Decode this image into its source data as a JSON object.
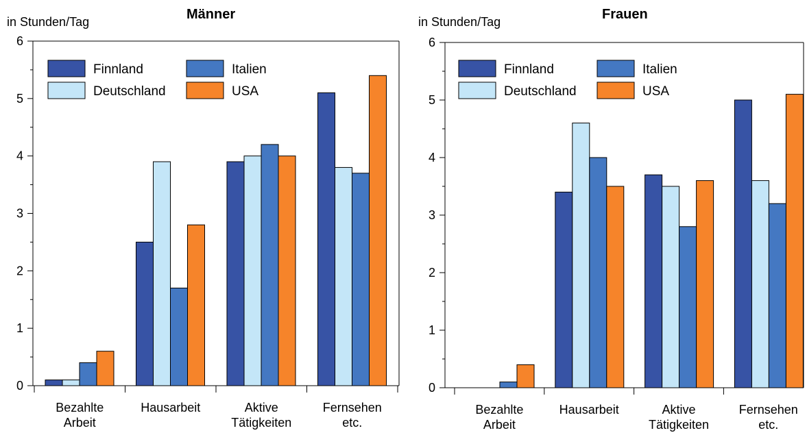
{
  "chart_data": [
    {
      "type": "bar",
      "title": "Männer",
      "ylabel": "in Stunden/Tag",
      "ylim": [
        0,
        6
      ],
      "yticks": [
        "0",
        "1",
        "2",
        "3",
        "4",
        "5",
        "6"
      ],
      "categories": [
        [
          "Bezahlte",
          "Arbeit"
        ],
        [
          "Hausarbeit"
        ],
        [
          "Aktive",
          "Tätigkeiten"
        ],
        [
          "Fernsehen",
          "etc."
        ]
      ],
      "series": [
        {
          "name": "Finnland",
          "color": "#3753a5",
          "values": [
            0.1,
            2.5,
            3.9,
            5.1
          ]
        },
        {
          "name": "Deutschland",
          "color": "#c4e6f8",
          "values": [
            0.1,
            3.9,
            4.0,
            3.8
          ]
        },
        {
          "name": "Italien",
          "color": "#4478c2",
          "values": [
            0.4,
            1.7,
            4.2,
            3.7
          ]
        },
        {
          "name": "USA",
          "color": "#f6842a",
          "values": [
            0.6,
            2.8,
            4.0,
            5.4
          ]
        }
      ],
      "legend_position": "top-left",
      "grid": false
    },
    {
      "type": "bar",
      "title": "Frauen",
      "ylabel": "in Stunden/Tag",
      "ylim": [
        0,
        6
      ],
      "yticks": [
        "0",
        "1",
        "2",
        "3",
        "4",
        "5",
        "6"
      ],
      "categories": [
        [
          "Bezahlte",
          "Arbeit"
        ],
        [
          "Hausarbeit"
        ],
        [
          "Aktive",
          "Tätigkeiten"
        ],
        [
          "Fernsehen",
          "etc."
        ]
      ],
      "series": [
        {
          "name": "Finnland",
          "color": "#3753a5",
          "values": [
            0.0,
            3.4,
            3.7,
            5.0
          ]
        },
        {
          "name": "Deutschland",
          "color": "#c4e6f8",
          "values": [
            0.0,
            4.6,
            3.5,
            3.6
          ]
        },
        {
          "name": "Italien",
          "color": "#4478c2",
          "values": [
            0.1,
            4.0,
            2.8,
            3.2
          ]
        },
        {
          "name": "USA",
          "color": "#f6842a",
          "values": [
            0.4,
            3.5,
            3.6,
            5.1
          ]
        }
      ],
      "legend_position": "top-left",
      "grid": false
    }
  ]
}
